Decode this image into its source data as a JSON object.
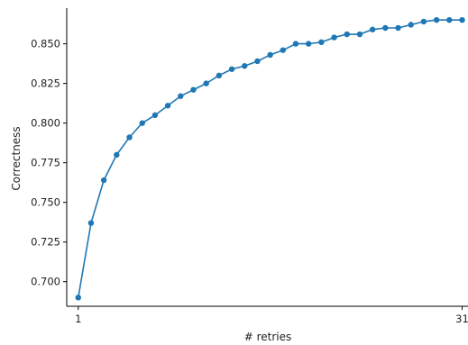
{
  "chart_data": {
    "type": "line",
    "xlabel": "# retries",
    "ylabel": "Correctness",
    "xlim": [
      0.1,
      31.6
    ],
    "ylim": [
      0.6845,
      0.8725
    ],
    "x_ticks": [
      1,
      31
    ],
    "y_ticks": [
      0.7,
      0.725,
      0.75,
      0.775,
      0.8,
      0.825,
      0.85
    ],
    "y_tick_labels": [
      "0.700",
      "0.725",
      "0.750",
      "0.775",
      "0.800",
      "0.825",
      "0.850"
    ],
    "grid": false,
    "series": [
      {
        "color": "#1f77b4",
        "marker": "circle",
        "x": [
          1,
          2,
          3,
          4,
          5,
          6,
          7,
          8,
          9,
          10,
          11,
          12,
          13,
          14,
          15,
          16,
          17,
          18,
          19,
          20,
          21,
          22,
          23,
          24,
          25,
          26,
          27,
          28,
          29,
          30,
          31
        ],
        "y": [
          0.69,
          0.737,
          0.764,
          0.78,
          0.791,
          0.8,
          0.805,
          0.811,
          0.817,
          0.821,
          0.825,
          0.83,
          0.834,
          0.836,
          0.839,
          0.843,
          0.846,
          0.85,
          0.85,
          0.851,
          0.854,
          0.856,
          0.856,
          0.859,
          0.86,
          0.86,
          0.862,
          0.864,
          0.865,
          0.865,
          0.865
        ]
      }
    ]
  }
}
